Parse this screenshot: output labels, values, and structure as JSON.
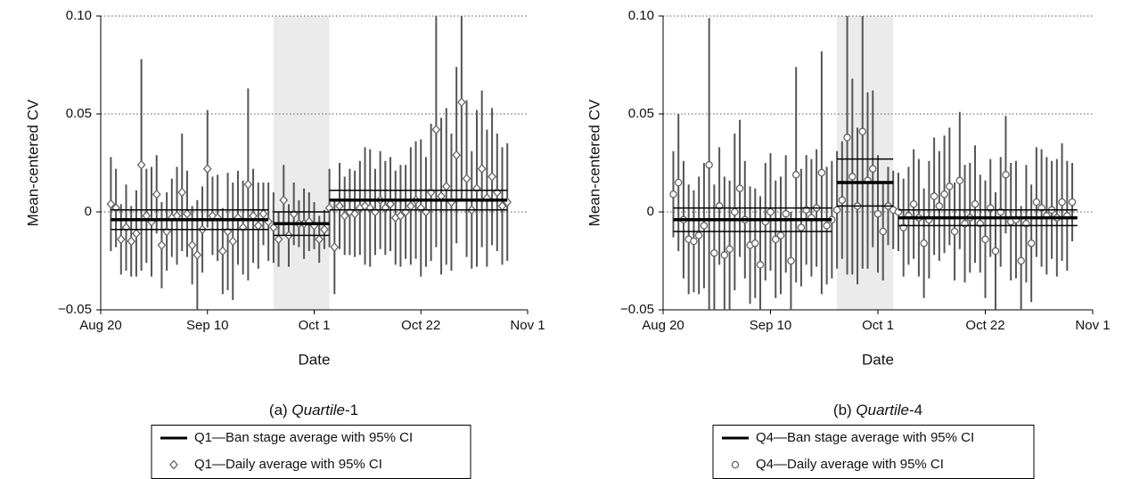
{
  "chart_data": [
    {
      "type": "stage-errorbar",
      "caption_prefix": "(a)",
      "caption_italic": "Quartile",
      "caption_suffix": "-1",
      "x_label": "Date",
      "y_label": "Mean-centered CV",
      "xlim": [
        0,
        84
      ],
      "xticks": [
        {
          "value": 0,
          "label": "Aug 20"
        },
        {
          "value": 21,
          "label": "Sep 10"
        },
        {
          "value": 42,
          "label": "Oct 1"
        },
        {
          "value": 63,
          "label": "Oct 22"
        },
        {
          "value": 84,
          "label": "Nov 1"
        }
      ],
      "ylim": [
        -0.05,
        0.1
      ],
      "yticks": [
        {
          "value": -0.05,
          "label": "−0.05"
        },
        0,
        0.05,
        {
          "value": 0.1,
          "label": "0.10"
        }
      ],
      "grid": true,
      "stage_series": {
        "name": "Q1—Ban stage average with 95% CI",
        "color": "#000000",
        "stages": [
          {
            "start": 2,
            "end": 33,
            "mean": -0.004,
            "ci_low": -0.009,
            "ci_high": 0.001,
            "shaded": false
          },
          {
            "start": 34,
            "end": 45,
            "mean": -0.006,
            "ci_low": -0.012,
            "ci_high": 0.0,
            "shaded": true
          },
          {
            "start": 45,
            "end": 80,
            "mean": 0.006,
            "ci_low": 0.001,
            "ci_high": 0.011,
            "shaded": false
          }
        ]
      },
      "daily_series": {
        "name": "Q1—Daily average with 95% CI",
        "color": "#555555",
        "marker": "diamond",
        "x": [
          2,
          3,
          4,
          5,
          6,
          7,
          8,
          9,
          10,
          11,
          12,
          13,
          14,
          15,
          16,
          17,
          18,
          19,
          20,
          21,
          22,
          23,
          24,
          25,
          26,
          27,
          28,
          29,
          30,
          31,
          32,
          33,
          34,
          35,
          36,
          37,
          38,
          39,
          40,
          41,
          42,
          43,
          44,
          45,
          46,
          47,
          48,
          49,
          50,
          51,
          52,
          53,
          54,
          55,
          56,
          57,
          58,
          59,
          60,
          61,
          62,
          63,
          64,
          65,
          66,
          67,
          68,
          69,
          70,
          71,
          72,
          73,
          74,
          75,
          76,
          77,
          78,
          79,
          80
        ],
        "values": [
          0.004,
          0.002,
          -0.014,
          -0.008,
          -0.015,
          -0.011,
          0.024,
          -0.002,
          -0.005,
          0.009,
          -0.017,
          -0.01,
          -0.003,
          -0.002,
          0.01,
          -0.001,
          -0.017,
          -0.022,
          -0.009,
          0.022,
          -0.002,
          -0.003,
          -0.02,
          -0.01,
          -0.015,
          -0.003,
          -0.008,
          0.014,
          -0.002,
          -0.007,
          -0.001,
          -0.005,
          -0.008,
          -0.014,
          0.006,
          -0.012,
          -0.001,
          -0.006,
          -0.006,
          -0.005,
          -0.007,
          -0.014,
          -0.009,
          0.002,
          -0.018,
          0.003,
          -0.002,
          0,
          -0.001,
          0.002,
          0.003,
          0.002,
          0,
          0.006,
          0.002,
          0.004,
          -0.003,
          -0.002,
          0,
          0.003,
          0.006,
          0.002,
          0,
          0.01,
          0.042,
          0.008,
          0.013,
          0.005,
          0.029,
          0.056,
          0.017,
          0.001,
          0.012,
          0.022,
          0.007,
          0.018,
          0.01,
          0.003,
          0.005
        ],
        "errors": [
          0.024,
          0.02,
          0.018,
          0.022,
          0.018,
          0.022,
          0.054,
          0.024,
          0.028,
          0.02,
          0.022,
          0.02,
          0.02,
          0.025,
          0.03,
          0.022,
          0.02,
          0.028,
          0.022,
          0.03,
          0.02,
          0.022,
          0.022,
          0.03,
          0.03,
          0.024,
          0.024,
          0.049,
          0.024,
          0.022,
          0.016,
          0.02,
          0.018,
          0.014,
          0.018,
          0.016,
          0.016,
          0.012,
          0.018,
          0.015,
          0.012,
          0.012,
          0.01,
          0.02,
          0.024,
          0.022,
          0.02,
          0.022,
          0.022,
          0.024,
          0.03,
          0.03,
          0.022,
          0.025,
          0.024,
          0.024,
          0.024,
          0.026,
          0.024,
          0.03,
          0.03,
          0.035,
          0.028,
          0.035,
          0.06,
          0.04,
          0.04,
          0.035,
          0.045,
          0.05,
          0.04,
          0.03,
          0.04,
          0.04,
          0.035,
          0.035,
          0.03,
          0.03,
          0.03
        ]
      }
    },
    {
      "type": "stage-errorbar",
      "caption_prefix": "(b)",
      "caption_italic": "Quartile",
      "caption_suffix": "-4",
      "x_label": "Date",
      "y_label": "Mean-centered CV",
      "xlim": [
        0,
        84
      ],
      "xticks": [
        {
          "value": 0,
          "label": "Aug 20"
        },
        {
          "value": 21,
          "label": "Sep 10"
        },
        {
          "value": 42,
          "label": "Oct 1"
        },
        {
          "value": 63,
          "label": "Oct 22"
        },
        {
          "value": 84,
          "label": "Nov 1"
        }
      ],
      "ylim": [
        -0.05,
        0.1
      ],
      "yticks": [
        {
          "value": -0.05,
          "label": "−0.05"
        },
        0,
        0.05,
        {
          "value": 0.1,
          "label": "0.10"
        }
      ],
      "grid": true,
      "stage_series": {
        "name": "Q4—Ban stage average with 95% CI",
        "color": "#000000",
        "stages": [
          {
            "start": 2,
            "end": 33,
            "mean": -0.004,
            "ci_low": -0.01,
            "ci_high": 0.002,
            "shaded": false
          },
          {
            "start": 34,
            "end": 45,
            "mean": 0.015,
            "ci_low": 0.003,
            "ci_high": 0.027,
            "shaded": true
          },
          {
            "start": 46,
            "end": 81,
            "mean": -0.003,
            "ci_low": -0.007,
            "ci_high": 0.001,
            "shaded": false
          }
        ]
      },
      "daily_series": {
        "name": "Q4—Daily average with 95% CI",
        "color": "#555555",
        "marker": "circle",
        "x": [
          2,
          3,
          4,
          5,
          6,
          7,
          8,
          9,
          10,
          11,
          12,
          13,
          14,
          15,
          16,
          17,
          18,
          19,
          20,
          21,
          22,
          23,
          24,
          25,
          26,
          27,
          28,
          29,
          30,
          31,
          32,
          33,
          34,
          35,
          36,
          37,
          38,
          39,
          40,
          41,
          42,
          43,
          44,
          45,
          46,
          47,
          48,
          49,
          50,
          51,
          52,
          53,
          54,
          55,
          56,
          57,
          58,
          59,
          60,
          61,
          62,
          63,
          64,
          65,
          66,
          67,
          68,
          69,
          70,
          71,
          72,
          73,
          74,
          75,
          76,
          77,
          78,
          79,
          80
        ],
        "values": [
          0.009,
          0.015,
          -0.004,
          -0.014,
          -0.015,
          -0.012,
          -0.007,
          0.024,
          -0.021,
          0.003,
          -0.022,
          -0.019,
          0,
          0.012,
          -0.004,
          -0.017,
          -0.016,
          -0.027,
          -0.005,
          0,
          -0.014,
          -0.012,
          -0.001,
          -0.025,
          0.019,
          -0.008,
          0.001,
          -0.003,
          0.002,
          0.02,
          -0.007,
          -0.004,
          0.001,
          0.006,
          0.038,
          0.018,
          0.003,
          0.041,
          0.016,
          0.022,
          -0.001,
          -0.01,
          0.003,
          0.001,
          0,
          -0.008,
          -0.002,
          0.004,
          -0.003,
          -0.016,
          -0.004,
          0.008,
          0.003,
          0.009,
          0.013,
          -0.01,
          0.016,
          -0.006,
          -0.003,
          0.004,
          -0.006,
          -0.014,
          0.002,
          -0.02,
          0,
          0.019,
          -0.005,
          -0.004,
          -0.025,
          -0.006,
          -0.016,
          0.005,
          0.002,
          -0.002,
          0.001,
          -0.003,
          0.005,
          -0.002,
          0.005
        ],
        "errors": [
          0.022,
          0.035,
          0.03,
          0.028,
          0.026,
          0.03,
          0.032,
          0.075,
          0.035,
          0.03,
          0.04,
          0.035,
          0.04,
          0.035,
          0.03,
          0.03,
          0.028,
          0.035,
          0.03,
          0.03,
          0.03,
          0.03,
          0.03,
          0.025,
          0.055,
          0.03,
          0.028,
          0.03,
          0.03,
          0.062,
          0.03,
          0.03,
          0.03,
          0.03,
          0.07,
          0.05,
          0.04,
          0.07,
          0.045,
          0.04,
          0.03,
          0.025,
          0.02,
          0.02,
          0.02,
          0.025,
          0.025,
          0.028,
          0.03,
          0.028,
          0.03,
          0.03,
          0.028,
          0.03,
          0.03,
          0.025,
          0.035,
          0.03,
          0.028,
          0.03,
          0.025,
          0.03,
          0.025,
          0.03,
          0.028,
          0.03,
          0.03,
          0.03,
          0.028,
          0.03,
          0.03,
          0.028,
          0.03,
          0.03,
          0.025,
          0.03,
          0.03,
          0.028,
          0.02
        ]
      }
    }
  ]
}
